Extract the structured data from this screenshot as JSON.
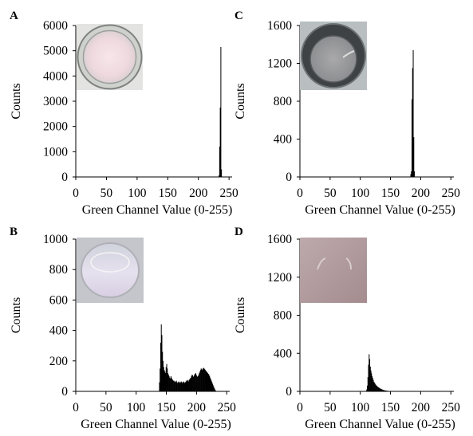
{
  "figure": {
    "panels": [
      {
        "label": "A",
        "xlabel": "Green Channel Value (0-255)",
        "ylabel": "Counts",
        "inset_image": "well-photo-pale-pink"
      },
      {
        "label": "C",
        "xlabel": "Green Channel Value (0-255)",
        "ylabel": "Counts",
        "inset_image": "well-photo-gray"
      },
      {
        "label": "B",
        "xlabel": "Green Channel Value (0-255)",
        "ylabel": "Counts",
        "inset_image": "well-photo-light-lavender"
      },
      {
        "label": "D",
        "xlabel": "Green Channel Value (0-255)",
        "ylabel": "Counts",
        "inset_image": "well-photo-mauve"
      }
    ]
  },
  "chart_data": [
    {
      "type": "bar",
      "panel": "A",
      "xlabel": "Green Channel Value (0-255)",
      "ylabel": "Counts",
      "xlim": [
        0,
        255
      ],
      "ylim": [
        0,
        6000
      ],
      "xticks": [
        0,
        50,
        100,
        150,
        200,
        250
      ],
      "yticks": [
        0,
        1000,
        2000,
        3000,
        4000,
        5000,
        6000
      ],
      "points": [
        [
          233,
          60
        ],
        [
          234,
          1200
        ],
        [
          235,
          2750
        ],
        [
          236,
          5150
        ],
        [
          237,
          300
        ]
      ]
    },
    {
      "type": "bar",
      "panel": "C",
      "xlabel": "Green Channel Value (0-255)",
      "ylabel": "Counts",
      "xlim": [
        0,
        255
      ],
      "ylim": [
        0,
        1600
      ],
      "xticks": [
        0,
        50,
        100,
        150,
        200,
        250
      ],
      "yticks": [
        0,
        400,
        800,
        1200,
        1600
      ],
      "points": [
        [
          183,
          30
        ],
        [
          184,
          60
        ],
        [
          185,
          820
        ],
        [
          186,
          1150
        ],
        [
          187,
          1340
        ],
        [
          188,
          420
        ],
        [
          189,
          60
        ]
      ]
    },
    {
      "type": "bar",
      "panel": "B",
      "xlabel": "Green Channel Value (0-255)",
      "ylabel": "Counts",
      "xlim": [
        0,
        255
      ],
      "ylim": [
        0,
        1000
      ],
      "xticks": [
        0,
        50,
        100,
        150,
        200,
        250
      ],
      "yticks": [
        0,
        200,
        400,
        600,
        800,
        1000
      ],
      "points": [
        [
          138,
          60
        ],
        [
          139,
          150
        ],
        [
          140,
          320
        ],
        [
          141,
          440
        ],
        [
          142,
          370
        ],
        [
          143,
          260
        ],
        [
          144,
          200
        ],
        [
          145,
          160
        ],
        [
          146,
          140
        ],
        [
          147,
          130
        ],
        [
          148,
          120
        ],
        [
          149,
          160
        ],
        [
          150,
          180
        ],
        [
          151,
          150
        ],
        [
          152,
          120
        ],
        [
          153,
          110
        ],
        [
          154,
          100
        ],
        [
          155,
          90
        ],
        [
          156,
          85
        ],
        [
          157,
          100
        ],
        [
          158,
          90
        ],
        [
          159,
          80
        ],
        [
          160,
          75
        ],
        [
          161,
          70
        ],
        [
          162,
          70
        ],
        [
          163,
          65
        ],
        [
          164,
          60
        ],
        [
          165,
          65
        ],
        [
          166,
          70
        ],
        [
          167,
          60
        ],
        [
          168,
          55
        ],
        [
          169,
          60
        ],
        [
          170,
          65
        ],
        [
          171,
          60
        ],
        [
          172,
          55
        ],
        [
          173,
          60
        ],
        [
          174,
          65
        ],
        [
          175,
          60
        ],
        [
          176,
          55
        ],
        [
          177,
          60
        ],
        [
          178,
          65
        ],
        [
          179,
          60
        ],
        [
          180,
          55
        ],
        [
          181,
          60
        ],
        [
          182,
          65
        ],
        [
          183,
          70
        ],
        [
          184,
          75
        ],
        [
          185,
          70
        ],
        [
          186,
          65
        ],
        [
          187,
          75
        ],
        [
          188,
          80
        ],
        [
          189,
          85
        ],
        [
          190,
          90
        ],
        [
          191,
          100
        ],
        [
          192,
          110
        ],
        [
          193,
          105
        ],
        [
          194,
          95
        ],
        [
          195,
          100
        ],
        [
          196,
          110
        ],
        [
          197,
          115
        ],
        [
          198,
          120
        ],
        [
          199,
          110
        ],
        [
          200,
          100
        ],
        [
          201,
          95
        ],
        [
          202,
          100
        ],
        [
          203,
          110
        ],
        [
          204,
          120
        ],
        [
          205,
          130
        ],
        [
          206,
          140
        ],
        [
          207,
          150
        ],
        [
          208,
          145
        ],
        [
          209,
          140
        ],
        [
          210,
          150
        ],
        [
          211,
          155
        ],
        [
          212,
          150
        ],
        [
          213,
          145
        ],
        [
          214,
          140
        ],
        [
          215,
          135
        ],
        [
          216,
          130
        ],
        [
          217,
          125
        ],
        [
          218,
          120
        ],
        [
          219,
          115
        ],
        [
          220,
          110
        ],
        [
          221,
          100
        ],
        [
          222,
          90
        ],
        [
          223,
          80
        ],
        [
          224,
          70
        ],
        [
          225,
          60
        ],
        [
          226,
          50
        ],
        [
          227,
          40
        ],
        [
          228,
          30
        ],
        [
          229,
          20
        ],
        [
          230,
          12
        ],
        [
          231,
          6
        ]
      ]
    },
    {
      "type": "bar",
      "panel": "D",
      "xlabel": "Green Channel Value (0-255)",
      "ylabel": "Counts",
      "xlim": [
        0,
        255
      ],
      "ylim": [
        0,
        1600
      ],
      "xticks": [
        0,
        50,
        100,
        150,
        200,
        250
      ],
      "yticks": [
        0,
        400,
        800,
        1200,
        1600
      ],
      "points": [
        [
          110,
          20
        ],
        [
          111,
          60
        ],
        [
          112,
          150
        ],
        [
          113,
          280
        ],
        [
          114,
          390
        ],
        [
          115,
          340
        ],
        [
          116,
          260
        ],
        [
          117,
          220
        ],
        [
          118,
          190
        ],
        [
          119,
          160
        ],
        [
          120,
          140
        ],
        [
          121,
          120
        ],
        [
          122,
          100
        ],
        [
          123,
          90
        ],
        [
          124,
          80
        ],
        [
          125,
          70
        ],
        [
          126,
          62
        ],
        [
          127,
          55
        ],
        [
          128,
          50
        ],
        [
          129,
          45
        ],
        [
          130,
          40
        ],
        [
          131,
          36
        ],
        [
          132,
          32
        ],
        [
          133,
          28
        ],
        [
          134,
          25
        ],
        [
          135,
          22
        ],
        [
          136,
          19
        ],
        [
          137,
          16
        ],
        [
          138,
          14
        ],
        [
          139,
          12
        ],
        [
          140,
          10
        ],
        [
          141,
          9
        ],
        [
          142,
          8
        ],
        [
          143,
          7
        ],
        [
          144,
          6
        ],
        [
          145,
          5
        ],
        [
          146,
          4
        ],
        [
          147,
          3
        ],
        [
          148,
          3
        ],
        [
          149,
          2
        ],
        [
          150,
          2
        ],
        [
          151,
          1
        ],
        [
          152,
          1
        ]
      ]
    }
  ]
}
